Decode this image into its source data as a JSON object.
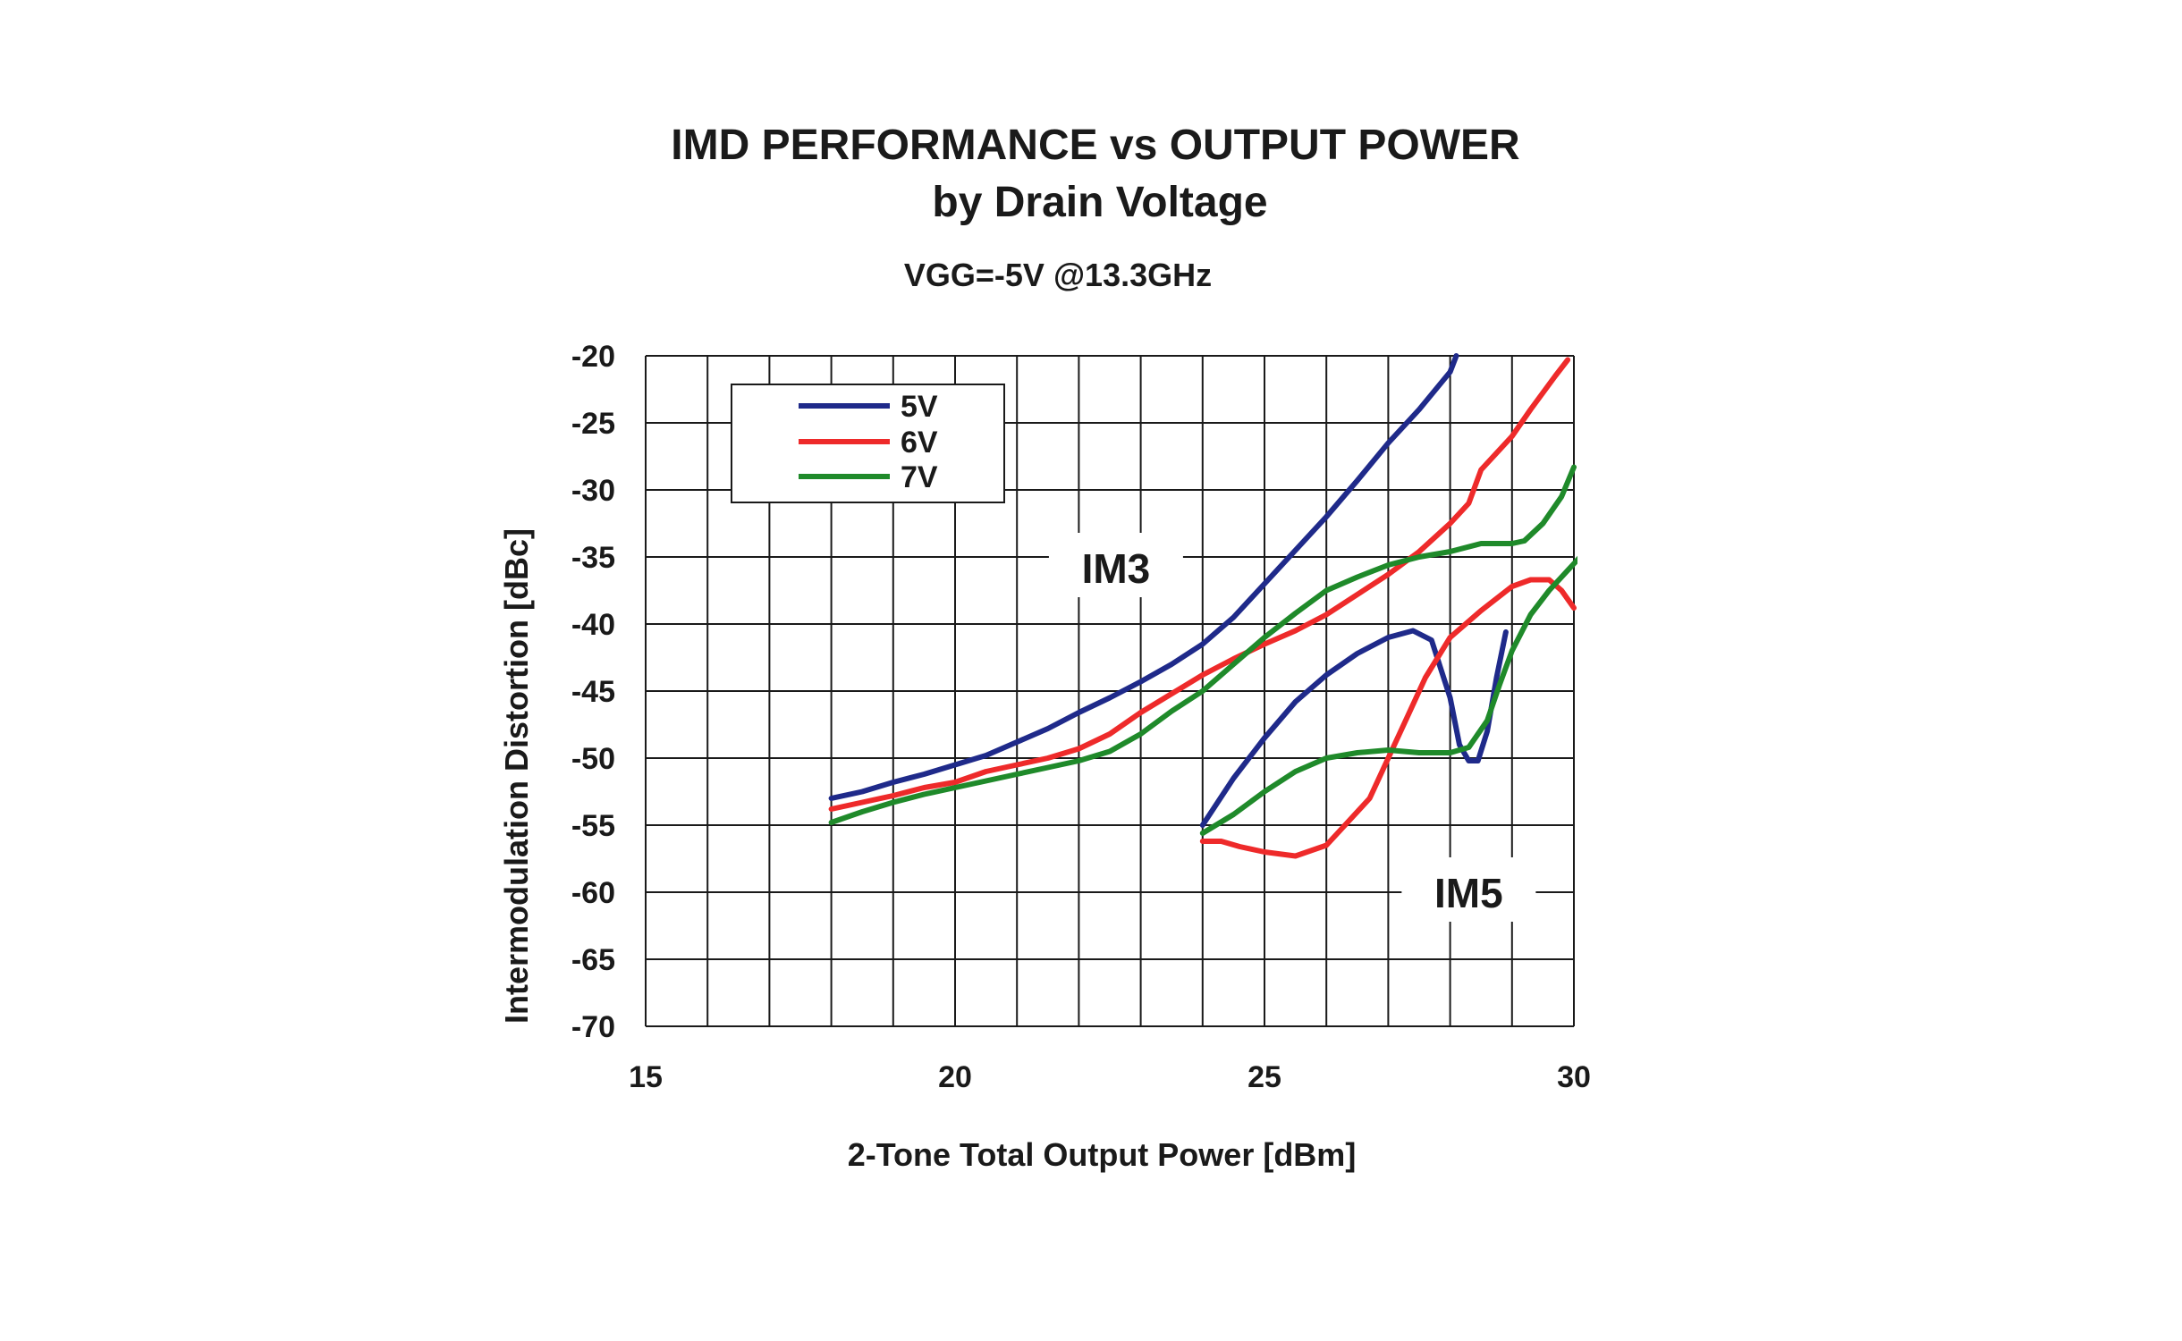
{
  "chart_data": {
    "type": "line",
    "title": "IMD PERFORMANCE vs OUTPUT POWER",
    "subtitle": "by Drain Voltage",
    "condition": "VGG=-5V @13.3GHz",
    "xlabel": "2-Tone Total Output Power [dBm]",
    "ylabel": "Intermodulation Distortion [dBc]",
    "xlim": [
      15,
      30
    ],
    "ylim": [
      -70,
      -20
    ],
    "xticks": [
      "15",
      "20",
      "25",
      "30"
    ],
    "yticks": [
      "-20",
      "-25",
      "-30",
      "-35",
      "-40",
      "-45",
      "-50",
      "-55",
      "-60",
      "-65",
      "-70"
    ],
    "grid": true,
    "legend_position": "top-left",
    "legend": [
      {
        "label": "5V",
        "color": "#1f2a8a"
      },
      {
        "label": "6V",
        "color": "#ee2a2a"
      },
      {
        "label": "7V",
        "color": "#1f8a2a"
      }
    ],
    "annotations": [
      {
        "text": "IM3",
        "x": 22.6,
        "y": -36
      },
      {
        "text": "IM5",
        "x": 28.3,
        "y": -60.2
      }
    ],
    "series": [
      {
        "name": "5V",
        "group": "IM3",
        "color": "#1f2a8a",
        "points": [
          [
            18,
            -53
          ],
          [
            18.5,
            -52.5
          ],
          [
            19,
            -51.8
          ],
          [
            19.5,
            -51.2
          ],
          [
            20,
            -50.5
          ],
          [
            20.5,
            -49.8
          ],
          [
            21,
            -48.8
          ],
          [
            21.5,
            -47.8
          ],
          [
            22,
            -46.6
          ],
          [
            22.5,
            -45.5
          ],
          [
            23,
            -44.3
          ],
          [
            23.5,
            -43
          ],
          [
            24,
            -41.5
          ],
          [
            24.5,
            -39.5
          ],
          [
            25,
            -37
          ],
          [
            25.5,
            -34.5
          ],
          [
            26,
            -32
          ],
          [
            26.5,
            -29.3
          ],
          [
            27,
            -26.5
          ],
          [
            27.5,
            -24
          ],
          [
            28,
            -21.2
          ],
          [
            28.1,
            -20
          ]
        ]
      },
      {
        "name": "6V",
        "group": "IM3",
        "color": "#ee2a2a",
        "points": [
          [
            18,
            -53.8
          ],
          [
            18.5,
            -53.3
          ],
          [
            19,
            -52.8
          ],
          [
            19.5,
            -52.2
          ],
          [
            20,
            -51.8
          ],
          [
            20.5,
            -51
          ],
          [
            21,
            -50.5
          ],
          [
            21.5,
            -50
          ],
          [
            22,
            -49.3
          ],
          [
            22.5,
            -48.2
          ],
          [
            23,
            -46.6
          ],
          [
            23.5,
            -45.2
          ],
          [
            24,
            -43.8
          ],
          [
            24.5,
            -42.6
          ],
          [
            25,
            -41.5
          ],
          [
            25.5,
            -40.5
          ],
          [
            26,
            -39.3
          ],
          [
            26.5,
            -37.8
          ],
          [
            27,
            -36.3
          ],
          [
            27.5,
            -34.6
          ],
          [
            28,
            -32.5
          ],
          [
            28.3,
            -31
          ],
          [
            28.5,
            -28.5
          ],
          [
            29,
            -26
          ],
          [
            29.3,
            -24
          ],
          [
            29.7,
            -21.5
          ],
          [
            29.9,
            -20.3
          ]
        ]
      },
      {
        "name": "7V",
        "group": "IM3",
        "color": "#1f8a2a",
        "points": [
          [
            18,
            -54.8
          ],
          [
            18.5,
            -54
          ],
          [
            19,
            -53.3
          ],
          [
            19.5,
            -52.7
          ],
          [
            20,
            -52.2
          ],
          [
            20.5,
            -51.7
          ],
          [
            21,
            -51.2
          ],
          [
            21.5,
            -50.7
          ],
          [
            22,
            -50.2
          ],
          [
            22.5,
            -49.5
          ],
          [
            23,
            -48.2
          ],
          [
            23.5,
            -46.5
          ],
          [
            24,
            -45
          ],
          [
            24.5,
            -43
          ],
          [
            25,
            -41
          ],
          [
            25.5,
            -39.2
          ],
          [
            26,
            -37.5
          ],
          [
            26.5,
            -36.5
          ],
          [
            27,
            -35.6
          ],
          [
            27.5,
            -35
          ],
          [
            28,
            -34.6
          ],
          [
            28.5,
            -34
          ],
          [
            29,
            -34
          ],
          [
            29.2,
            -33.8
          ],
          [
            29.5,
            -32.5
          ],
          [
            29.8,
            -30.5
          ],
          [
            30,
            -28.3
          ]
        ]
      },
      {
        "name": "5V",
        "group": "IM5",
        "color": "#1f2a8a",
        "points": [
          [
            24,
            -55
          ],
          [
            24.5,
            -51.5
          ],
          [
            25,
            -48.5
          ],
          [
            25.5,
            -45.8
          ],
          [
            26,
            -43.8
          ],
          [
            26.5,
            -42.2
          ],
          [
            27,
            -41
          ],
          [
            27.4,
            -40.5
          ],
          [
            27.7,
            -41.2
          ],
          [
            28,
            -45.5
          ],
          [
            28.15,
            -49
          ],
          [
            28.3,
            -50.2
          ],
          [
            28.45,
            -50.2
          ],
          [
            28.6,
            -48
          ],
          [
            28.75,
            -44
          ],
          [
            28.9,
            -40.6
          ]
        ]
      },
      {
        "name": "6V",
        "group": "IM5",
        "color": "#ee2a2a",
        "points": [
          [
            24,
            -56.2
          ],
          [
            24.3,
            -56.2
          ],
          [
            24.6,
            -56.6
          ],
          [
            25,
            -57
          ],
          [
            25.5,
            -57.3
          ],
          [
            26,
            -56.5
          ],
          [
            26.3,
            -55
          ],
          [
            26.7,
            -53
          ],
          [
            27,
            -50
          ],
          [
            27.3,
            -47
          ],
          [
            27.6,
            -44
          ],
          [
            28,
            -41
          ],
          [
            28.5,
            -39
          ],
          [
            29,
            -37.2
          ],
          [
            29.3,
            -36.7
          ],
          [
            29.6,
            -36.7
          ],
          [
            29.8,
            -37.5
          ],
          [
            30,
            -38.8
          ]
        ]
      },
      {
        "name": "7V",
        "group": "IM5",
        "color": "#1f8a2a",
        "points": [
          [
            24,
            -55.6
          ],
          [
            24.5,
            -54.2
          ],
          [
            25,
            -52.5
          ],
          [
            25.5,
            -51
          ],
          [
            26,
            -50
          ],
          [
            26.5,
            -49.6
          ],
          [
            27,
            -49.4
          ],
          [
            27.5,
            -49.6
          ],
          [
            28,
            -49.6
          ],
          [
            28.3,
            -49.2
          ],
          [
            28.6,
            -47.2
          ],
          [
            28.8,
            -44.5
          ],
          [
            29,
            -42
          ],
          [
            29.3,
            -39.3
          ],
          [
            29.6,
            -37.5
          ],
          [
            30,
            -35.5
          ],
          [
            30.3,
            -34
          ],
          [
            30.4,
            -33.8
          ]
        ]
      }
    ]
  }
}
